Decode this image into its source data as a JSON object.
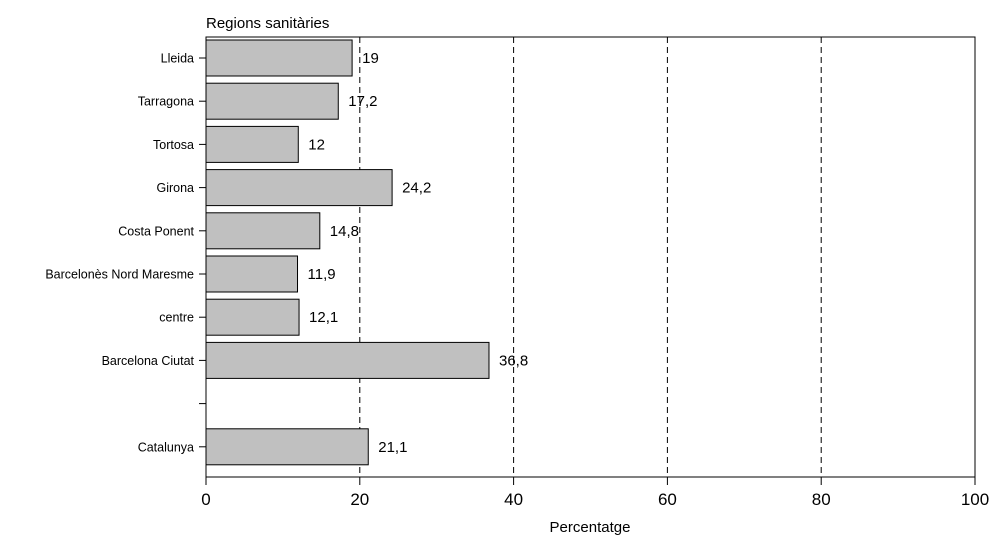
{
  "chart_data": {
    "type": "bar",
    "orientation": "horizontal",
    "title": "Regions sanitàries",
    "xlabel": "Percentatge",
    "ylabel": "",
    "xlim": [
      0,
      100
    ],
    "xticks": [
      "0",
      "20",
      "40",
      "60",
      "80",
      "100"
    ],
    "grid": "vertical dashed",
    "bar_color": "#c0c0c0",
    "categories": [
      "Lleida",
      "Tarragona",
      "Tortosa",
      "Girona",
      "Costa Ponent",
      "Barcelonès Nord Maresme",
      "centre",
      "Barcelona Ciutat",
      "",
      "Catalunya"
    ],
    "values": [
      19,
      17.2,
      12,
      24.2,
      14.8,
      11.9,
      12.1,
      36.8,
      null,
      21.1
    ],
    "value_labels": [
      "19",
      "17,2",
      "12",
      "24,2",
      "14,8",
      "11,9",
      "12,1",
      "36,8",
      "",
      "21,1"
    ]
  }
}
